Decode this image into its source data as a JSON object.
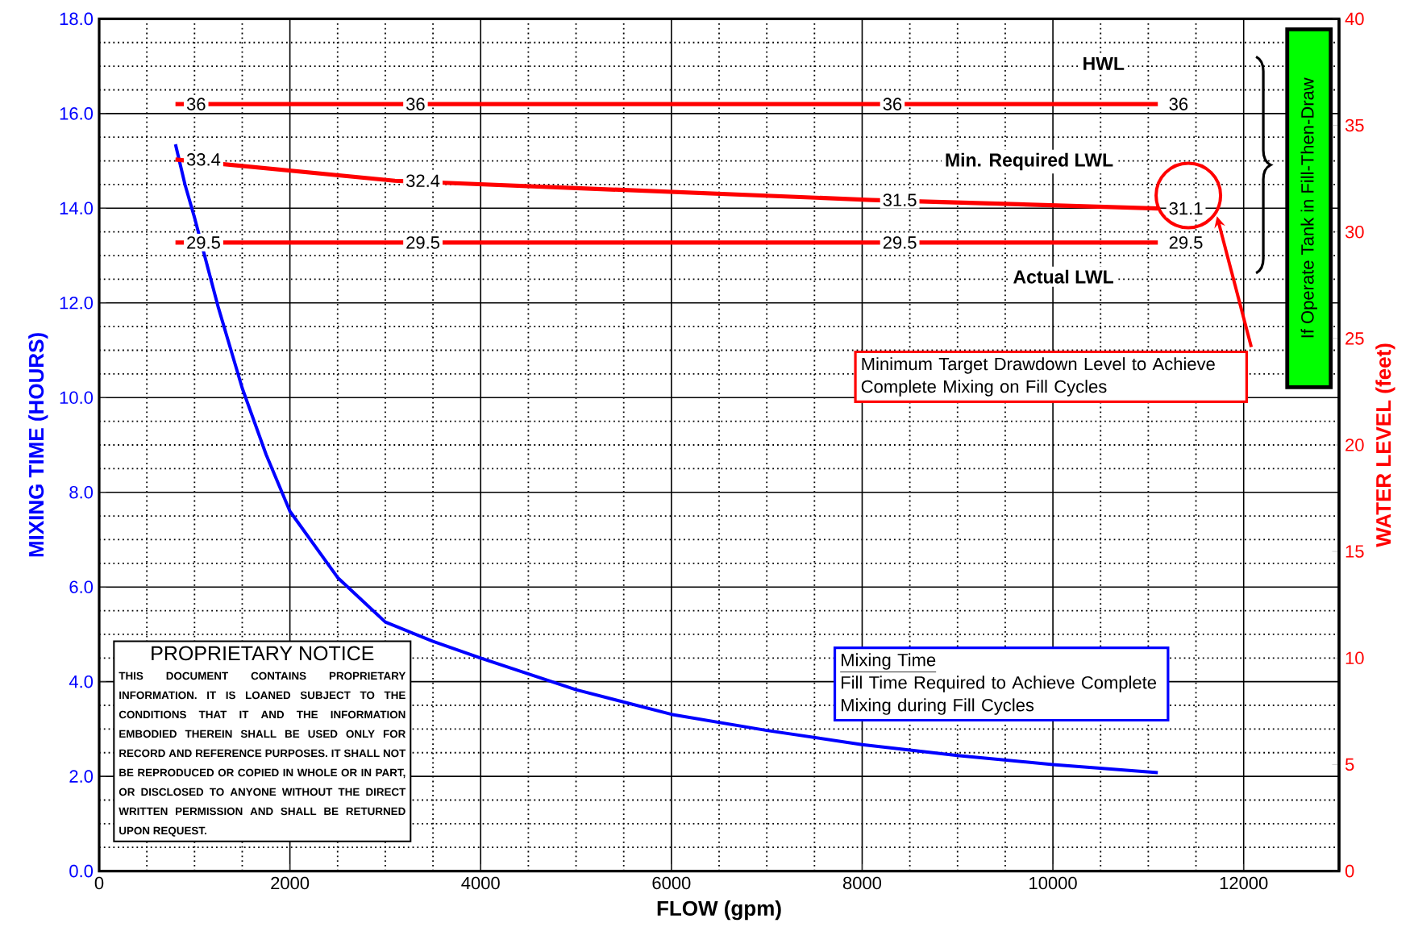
{
  "chart_data": {
    "type": "line",
    "xlabel": "FLOW (gpm)",
    "ylabel": "MIXING TIME (HOURS)",
    "y2label": "WATER LEVEL (feet)",
    "xlim": [
      0,
      13000
    ],
    "xticks": [
      0,
      2000,
      4000,
      6000,
      8000,
      10000,
      12000
    ],
    "ylim": [
      0,
      18
    ],
    "yticks": [
      {
        "value": 0,
        "label": "0.0"
      },
      {
        "value": 2,
        "label": "2.0"
      },
      {
        "value": 4,
        "label": "4.0"
      },
      {
        "value": 6,
        "label": "6.0"
      },
      {
        "value": 8,
        "label": "8.0"
      },
      {
        "value": 10,
        "label": "10.0"
      },
      {
        "value": 12,
        "label": "12.0"
      },
      {
        "value": 14,
        "label": "14.0"
      },
      {
        "value": 16,
        "label": "16.0"
      },
      {
        "value": 18,
        "label": "18.0"
      }
    ],
    "y2lim": [
      0,
      40
    ],
    "y2ticks": [
      0,
      5,
      10,
      15,
      20,
      25,
      30,
      35,
      40
    ],
    "grid": true,
    "marker": "none",
    "line_style": "solid",
    "series": [
      {
        "color": "#0000ff",
        "x": [
          800,
          900,
          1000,
          1250,
          1500,
          1750,
          2000,
          2250,
          2500,
          3000,
          3500,
          4000,
          5000,
          6000,
          7000,
          8000,
          9000,
          10000,
          11100
        ],
        "values": [
          15.35,
          14.5,
          13.8,
          11.9,
          10.2,
          8.8,
          7.6,
          6.9,
          6.2,
          5.26,
          4.85,
          4.5,
          3.83,
          3.31,
          2.97,
          2.67,
          2.44,
          2.25,
          2.08
        ]
      },
      {
        "name": "HWL",
        "axis": "y2",
        "color": "#ff0000",
        "x": [
          800,
          3100,
          8100,
          11100
        ],
        "values": [
          36,
          36,
          36,
          36
        ],
        "value_labels": [
          "36",
          "36",
          "36",
          "36"
        ]
      },
      {
        "name": "Min. Required LWL",
        "axis": "y2",
        "color": "#ff0000",
        "x": [
          800,
          3100,
          8100,
          11100
        ],
        "values": [
          33.4,
          32.4,
          31.5,
          31.1
        ],
        "value_labels": [
          "33.4",
          "32.4",
          "31.5",
          "31.1"
        ]
      },
      {
        "name": "Actual LWL",
        "axis": "y2",
        "color": "#ff0000",
        "x": [
          800,
          3100,
          8100,
          11100
        ],
        "values": [
          29.5,
          29.5,
          29.5,
          29.5
        ],
        "value_labels": [
          "29.5",
          "29.5",
          "29.5",
          "29.5"
        ]
      }
    ],
    "annotations": [
      "Minimum Target Drawdown Level to Achieve Complete Mixing on Fill Cycles",
      "If Operate Tank in Fill-Then-Draw",
      "Mixing Time",
      "Fill Time Required to Achieve Complete Mixing during Fill Cycles",
      "PROPRIETARY NOTICE",
      "THIS DOCUMENT CONTAINS PROPRIETARY INFORMATION. IT IS LOANED SUBJECT TO THE CONDITIONS THAT IT AND THE INFORMATION EMBODIED THEREIN SHALL BE USED ONLY FOR RECORD AND REFERENCE PURPOSES. IT SHALL NOT BE REPRODUCED OR COPIED IN WHOLE OR IN PART, OR DISCLOSED TO ANYONE WITHOUT THE DIRECT WRITTEN PERMISSION AND SHALL BE RETURNED UPON REQUEST."
    ]
  }
}
